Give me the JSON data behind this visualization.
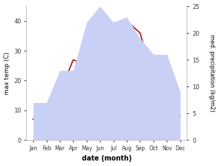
{
  "months": [
    "Jan",
    "Feb",
    "Mar",
    "Apr",
    "May",
    "Jun",
    "Jul",
    "Aug",
    "Sep",
    "Oct",
    "Nov",
    "Dec"
  ],
  "temperature": [
    7,
    12,
    16,
    27,
    25,
    30,
    38,
    40,
    36,
    20,
    15,
    8
  ],
  "precipitation": [
    7,
    7,
    13,
    13,
    22,
    25,
    22,
    23,
    19,
    16,
    16,
    9
  ],
  "temp_color": "#b03030",
  "precip_fill_color": "#c8d0f5",
  "temp_ylim": [
    0,
    45
  ],
  "precip_ylim": [
    0,
    25
  ],
  "ylabel_left": "max temp (C)",
  "ylabel_right": "med. precipitation (kg/m2)",
  "xlabel": "date (month)",
  "left_yticks": [
    0,
    10,
    20,
    30,
    40
  ],
  "right_yticks": [
    0,
    5,
    10,
    15,
    20,
    25
  ],
  "background_color": "#ffffff"
}
